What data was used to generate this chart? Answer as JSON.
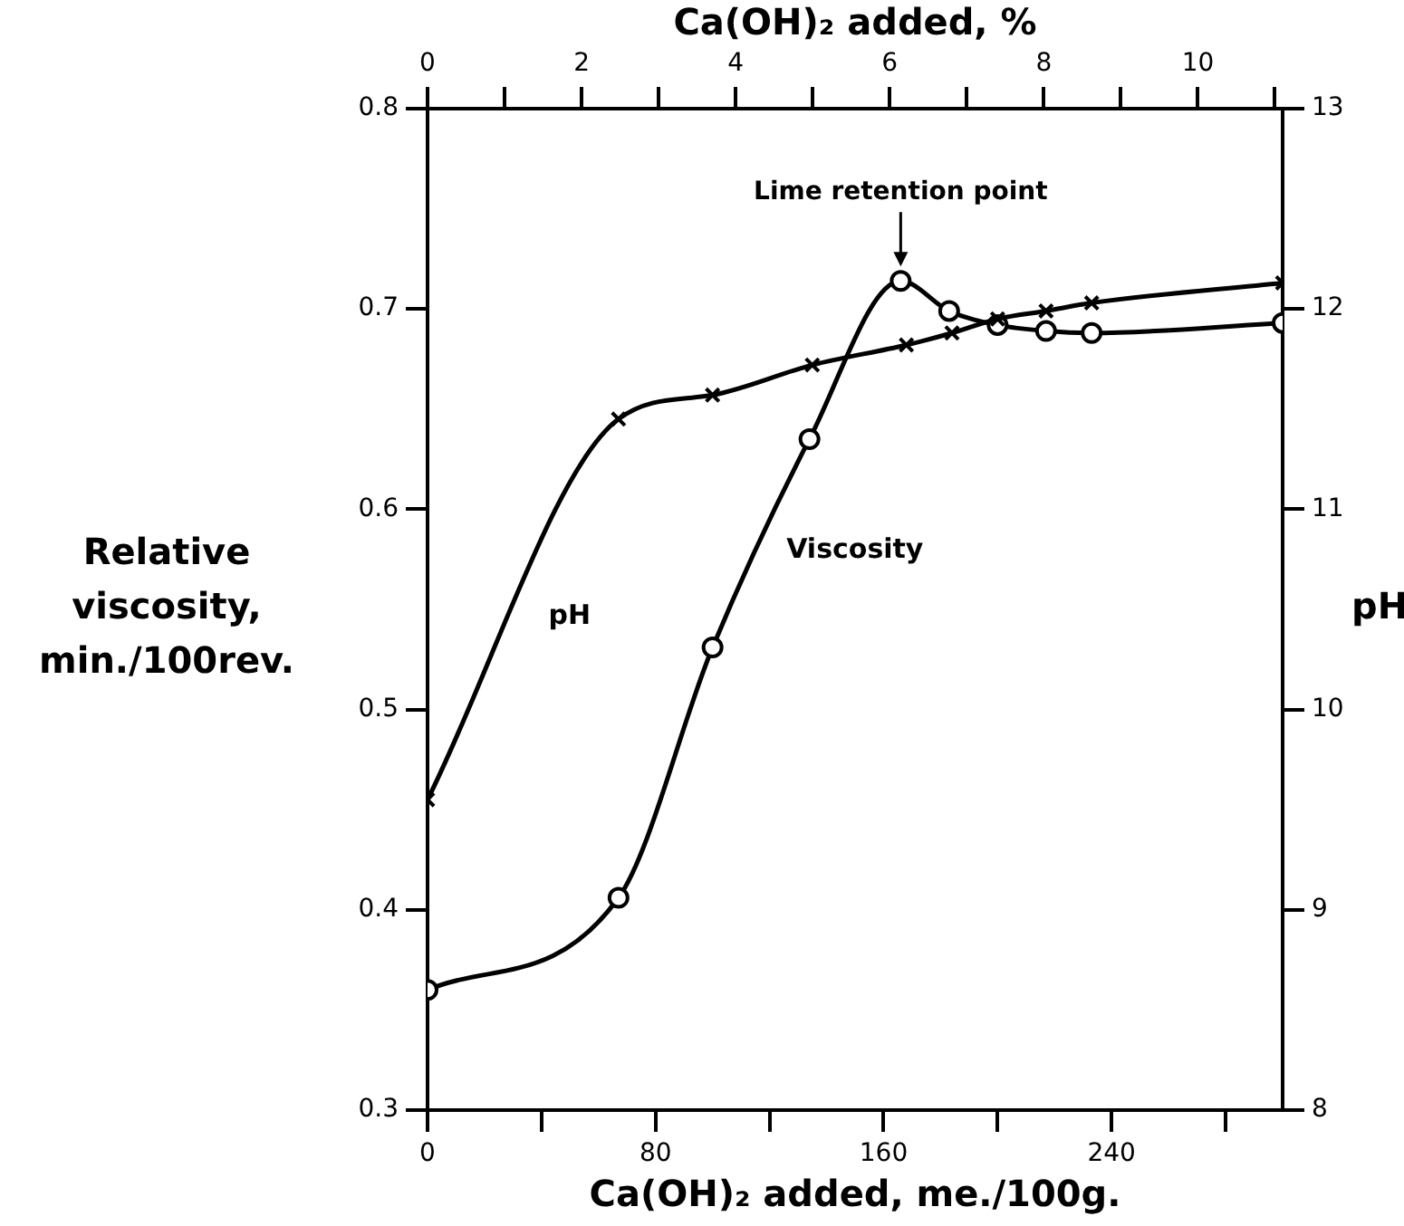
{
  "chart_data": {
    "type": "line",
    "xlabel": "Ca(OH)₂ added, me./100g.",
    "x2label": "Ca(OH)₂ added, %",
    "ylabel": "Relative viscosity, min./100rev.",
    "y2label": "pH",
    "xlim": [
      0,
      300
    ],
    "xticks": [
      0,
      {
        "value": 40,
        "label": null
      },
      80,
      {
        "value": 120,
        "label": null
      },
      160,
      {
        "value": 200,
        "label": null
      },
      240,
      {
        "value": 280,
        "label": null
      }
    ],
    "x2lim": [
      0,
      11.1
    ],
    "x2ticks": [
      0,
      {
        "value": 1,
        "label": null
      },
      2,
      {
        "value": 3,
        "label": null
      },
      4,
      {
        "value": 5,
        "label": null
      },
      6,
      {
        "value": 7,
        "label": null
      },
      8,
      {
        "value": 9,
        "label": null
      },
      10,
      {
        "value": 11,
        "label": null
      }
    ],
    "ylim": [
      0.3,
      0.8
    ],
    "yticks": [
      0.3,
      0.4,
      0.5,
      0.6,
      0.7,
      0.8
    ],
    "y2lim": [
      8,
      13
    ],
    "y2ticks": [
      8,
      9,
      10,
      11,
      12,
      13
    ],
    "grid": false,
    "legend": false,
    "line_style": "solid",
    "series": [
      {
        "name": "pH",
        "color": "#000000",
        "axis": "y2",
        "marker": "cross",
        "x": [
          0,
          67,
          100,
          135,
          168,
          184,
          200,
          217,
          233,
          300
        ],
        "values": [
          9.55,
          11.45,
          11.57,
          11.72,
          11.82,
          11.88,
          11.95,
          11.99,
          12.03,
          12.13
        ]
      },
      {
        "name": "Viscosity",
        "color": "#000000",
        "axis": "y",
        "marker": "circle",
        "x": [
          0,
          67,
          100,
          134,
          166,
          183,
          200,
          217,
          233,
          300
        ],
        "values": [
          0.36,
          0.406,
          0.531,
          0.635,
          0.714,
          0.699,
          0.692,
          0.689,
          0.688,
          0.693
        ]
      }
    ],
    "annotations": [
      {
        "text": "Lime retention point",
        "x": 166,
        "y": 0.714
      }
    ]
  }
}
